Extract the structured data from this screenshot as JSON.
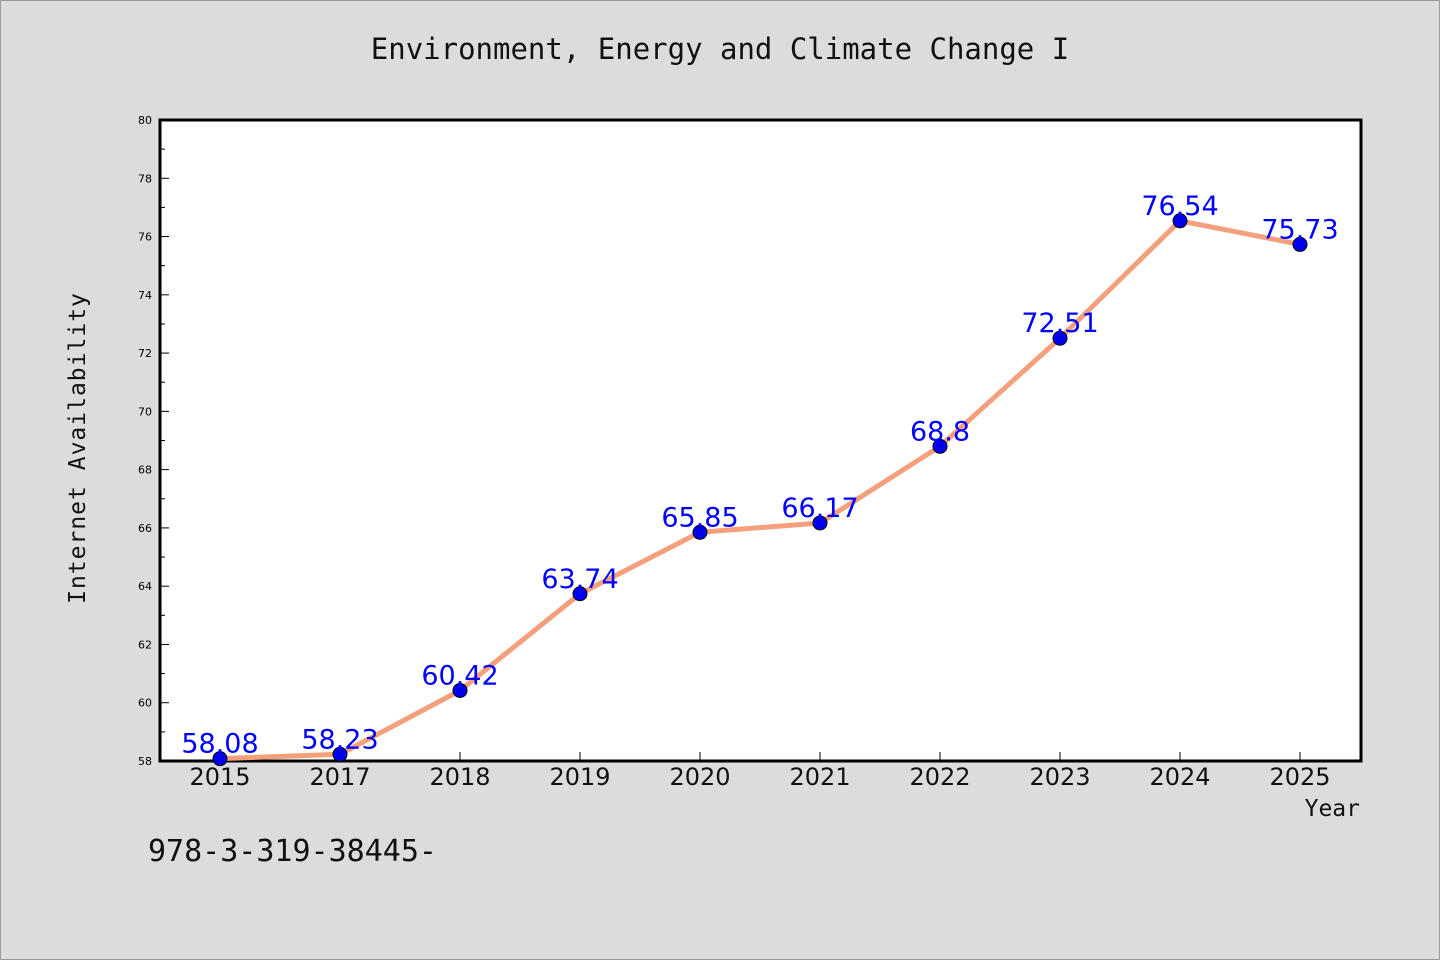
{
  "chart_data": {
    "type": "line",
    "title": "Environment, Energy and Climate Change I",
    "xlabel": "Year",
    "ylabel": "Internet Availability",
    "categories": [
      "2015",
      "2017",
      "2018",
      "2019",
      "2020",
      "2021",
      "2022",
      "2023",
      "2024",
      "2025"
    ],
    "series": [
      {
        "values": [
          58.08,
          58.23,
          60.42,
          63.74,
          65.85,
          66.17,
          68.8,
          72.51,
          76.54,
          75.73
        ],
        "labels": [
          "58.08",
          "58.23",
          "60.42",
          "63.74",
          "65.85",
          "66.17",
          "68.8",
          "72.51",
          "76.54",
          "75.73"
        ]
      }
    ],
    "ylim": [
      58,
      80
    ],
    "yticks": [
      "58",
      "60",
      "62",
      "64",
      "66",
      "68",
      "70",
      "72",
      "74",
      "76",
      "78",
      "80"
    ],
    "grid": false,
    "line_color": "#f4a07c",
    "marker_color": "#0000ee",
    "label_color": "#0000ff"
  },
  "footer_note": "978-3-319-38445-"
}
